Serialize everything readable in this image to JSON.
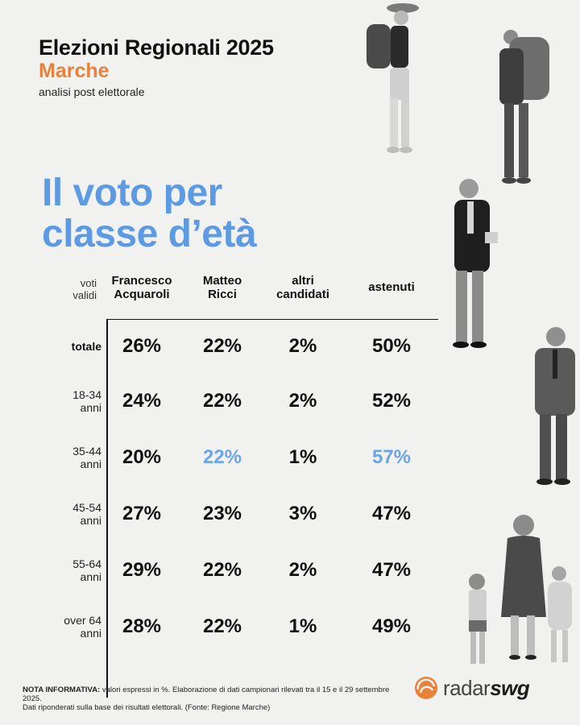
{
  "header": {
    "title": "Elezioni Regionali 2025",
    "region": "Marche",
    "subtitle": "analisi post elettorale"
  },
  "headline": {
    "line1": "Il voto per",
    "line2": "classe d’età"
  },
  "table": {
    "row_header": "voti validi",
    "row_header_l1": "voti",
    "row_header_l2": "validi",
    "columns": [
      {
        "l1": "Francesco",
        "l2": "Acquaroli"
      },
      {
        "l1": "Matteo",
        "l2": "Ricci"
      },
      {
        "l1": "altri",
        "l2": "candidati"
      },
      {
        "l1": "astenuti",
        "l2": ""
      }
    ],
    "rows": [
      {
        "l1": "totale",
        "l2": "",
        "cells": [
          "26%",
          "22%",
          "2%",
          "50%"
        ]
      },
      {
        "l1": "18-34",
        "l2": "anni",
        "cells": [
          "24%",
          "22%",
          "2%",
          "52%"
        ]
      },
      {
        "l1": "35-44",
        "l2": "anni",
        "cells": [
          "20%",
          "22%",
          "1%",
          "57%"
        ]
      },
      {
        "l1": "45-54",
        "l2": "anni",
        "cells": [
          "27%",
          "23%",
          "3%",
          "47%"
        ]
      },
      {
        "l1": "55-64",
        "l2": "anni",
        "cells": [
          "29%",
          "22%",
          "2%",
          "47%"
        ]
      },
      {
        "l1": "over 64",
        "l2": "anni",
        "cells": [
          "28%",
          "22%",
          "1%",
          "49%"
        ]
      }
    ]
  },
  "note": {
    "label": "NOTA INFORMATIVA:",
    "line1": " valori espressi in %. Elaborazione di dati campionari rilevati tra il 15 e il 29 settembre 2025.",
    "line2": "Dati riponderati sulla base dei risultati elettorali. (Fonte: Regione Marche)"
  },
  "logo": {
    "radar": "radar",
    "swg": "swg"
  },
  "colors": {
    "accent_orange": "#e8823a",
    "accent_blue": "#5c9ae3",
    "highlight_blue": "#6aa5ea"
  },
  "chart_data": {
    "type": "table",
    "categories": [
      "totale",
      "18-34 anni",
      "35-44 anni",
      "45-54 anni",
      "55-64 anni",
      "over 64 anni"
    ],
    "series": [
      {
        "name": "Francesco Acquaroli",
        "values": [
          26,
          24,
          20,
          27,
          29,
          28
        ]
      },
      {
        "name": "Matteo Ricci",
        "values": [
          22,
          22,
          22,
          23,
          22,
          22
        ]
      },
      {
        "name": "altri candidati",
        "values": [
          2,
          2,
          1,
          3,
          2,
          1
        ]
      },
      {
        "name": "astenuti",
        "values": [
          50,
          52,
          57,
          47,
          47,
          49
        ]
      }
    ],
    "highlighted": [
      {
        "series": "Matteo Ricci",
        "category": "35-44 anni"
      },
      {
        "series": "astenuti",
        "category": "35-44 anni"
      }
    ]
  }
}
